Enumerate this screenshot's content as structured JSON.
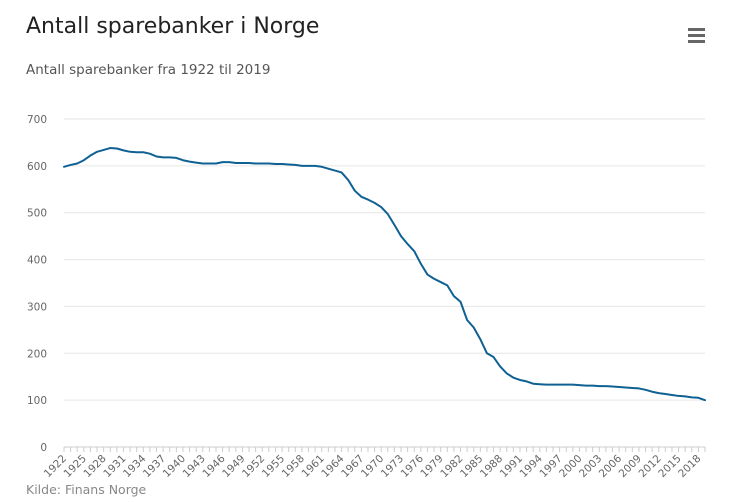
{
  "header": {
    "title": "Antall sparebanker i Norge",
    "subtitle": "Antall sparebanker fra 1922 til 2019",
    "menu_icon": "hamburger-menu-icon"
  },
  "credits": "Kilde: Finans Norge",
  "colors": {
    "series_line": "#0f6194",
    "gridline": "#e6e6e6",
    "axis": "#cccccc"
  },
  "chart_data": {
    "type": "line",
    "title": "Antall sparebanker i Norge",
    "subtitle": "Antall sparebanker fra 1922 til 2019",
    "xlabel": "",
    "ylabel": "",
    "xlim": [
      1922,
      2019
    ],
    "ylim": [
      0,
      700
    ],
    "y_ticks": [
      0,
      100,
      200,
      300,
      400,
      500,
      600,
      700
    ],
    "x_ticks": [
      1922,
      1925,
      1928,
      1931,
      1934,
      1937,
      1940,
      1943,
      1946,
      1949,
      1952,
      1955,
      1958,
      1961,
      1964,
      1967,
      1970,
      1973,
      1976,
      1979,
      1982,
      1985,
      1988,
      1991,
      1994,
      1997,
      2000,
      2003,
      2006,
      2009,
      2012,
      2015,
      2018
    ],
    "grid": true,
    "legend": "none",
    "series": [
      {
        "x": [
          1922,
          1923,
          1924,
          1925,
          1926,
          1927,
          1928,
          1929,
          1930,
          1931,
          1932,
          1933,
          1934,
          1935,
          1936,
          1937,
          1938,
          1939,
          1940,
          1941,
          1942,
          1943,
          1944,
          1945,
          1946,
          1947,
          1948,
          1949,
          1950,
          1951,
          1952,
          1953,
          1954,
          1955,
          1956,
          1957,
          1958,
          1959,
          1960,
          1961,
          1962,
          1963,
          1964,
          1965,
          1966,
          1967,
          1968,
          1969,
          1970,
          1971,
          1972,
          1973,
          1974,
          1975,
          1976,
          1977,
          1978,
          1979,
          1980,
          1981,
          1982,
          1983,
          1984,
          1985,
          1986,
          1987,
          1988,
          1989,
          1990,
          1991,
          1992,
          1993,
          1994,
          1995,
          1996,
          1997,
          1998,
          1999,
          2000,
          2001,
          2002,
          2003,
          2004,
          2005,
          2006,
          2007,
          2008,
          2009,
          2010,
          2011,
          2012,
          2013,
          2014,
          2015,
          2016,
          2017,
          2018,
          2019
        ],
        "values": [
          598,
          602,
          605,
          612,
          622,
          630,
          634,
          638,
          637,
          633,
          630,
          629,
          629,
          626,
          620,
          618,
          618,
          617,
          612,
          609,
          607,
          605,
          605,
          605,
          608,
          608,
          606,
          606,
          606,
          605,
          605,
          605,
          604,
          604,
          603,
          602,
          600,
          600,
          600,
          598,
          594,
          590,
          586,
          570,
          547,
          534,
          528,
          521,
          512,
          497,
          474,
          450,
          433,
          418,
          391,
          368,
          359,
          352,
          345,
          322,
          310,
          271,
          255,
          230,
          200,
          192,
          172,
          157,
          148,
          143,
          140,
          135,
          134,
          133,
          133,
          133,
          133,
          133,
          132,
          131,
          131,
          130,
          130,
          129,
          128,
          127,
          126,
          125,
          122,
          118,
          115,
          113,
          111,
          109,
          108,
          106,
          105,
          100
        ]
      }
    ]
  }
}
